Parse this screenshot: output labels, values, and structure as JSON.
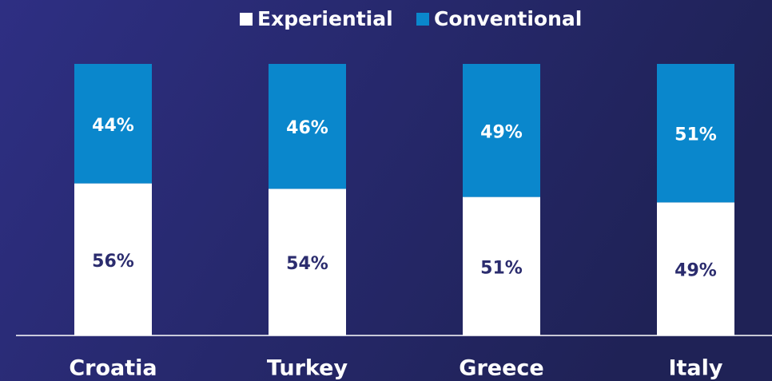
{
  "chart_data": {
    "type": "stacked_bar",
    "categories": [
      "Croatia",
      "Turkey",
      "Greece",
      "Italy"
    ],
    "series": [
      {
        "name": "Experiential",
        "color": "#ffffff",
        "label_color": "#2b2c6e",
        "values": [
          56,
          54,
          51,
          49
        ],
        "value_labels": [
          "56%",
          "54%",
          "51%",
          "49%"
        ]
      },
      {
        "name": "Conventional",
        "color": "#0a87cc",
        "label_color": "#ffffff",
        "values": [
          44,
          46,
          49,
          51
        ],
        "value_labels": [
          "44%",
          "46%",
          "49%",
          "51%"
        ]
      }
    ],
    "ylim": [
      0,
      100
    ],
    "legend": "top"
  }
}
